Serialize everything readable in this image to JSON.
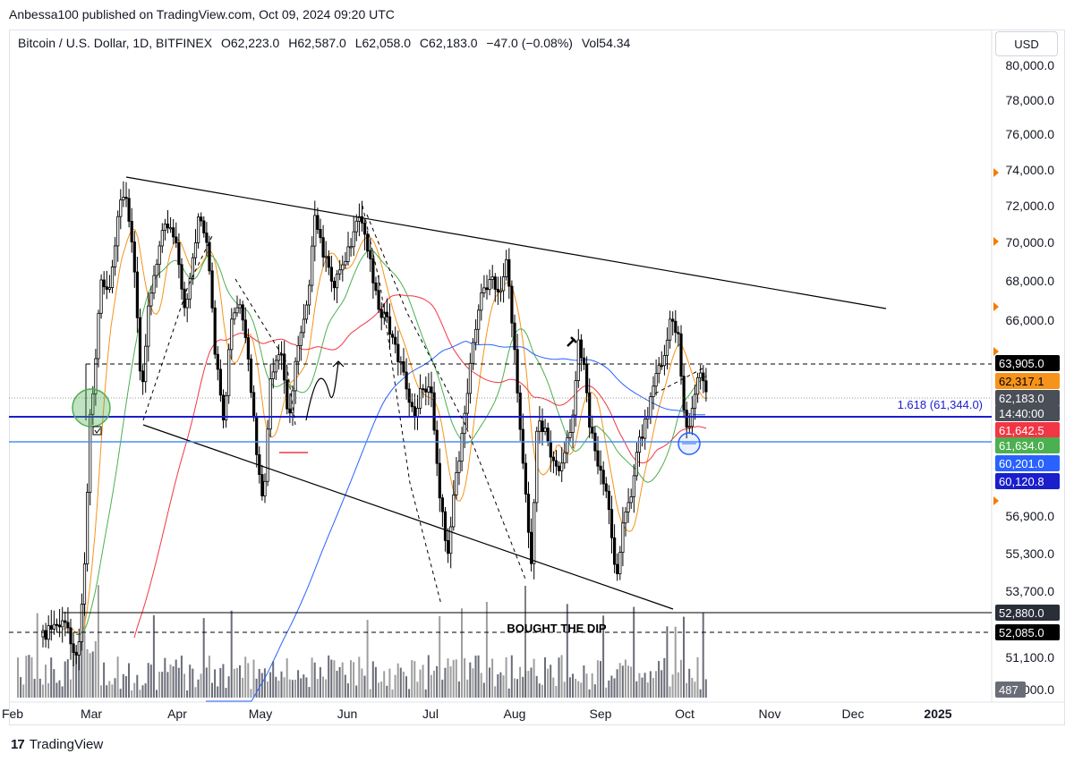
{
  "header": {
    "publish_line": "Anbessa100 published on TradingView.com, Oct 09, 2024 09:20 UTC"
  },
  "symbol": {
    "name": "Bitcoin / U.S. Dollar, 1D, BITFINEX",
    "open": "O62,223.0",
    "high": "H62,587.0",
    "low": "L62,058.0",
    "close": "C62,183.0",
    "change": "−47.0 (−0.08%)",
    "volume": "Vol54.34"
  },
  "currency_button": "USD",
  "footer": {
    "brand": "TradingView"
  },
  "chart_data": {
    "type": "candlestick",
    "y_axis": {
      "ticks": [
        "80,000.0",
        "78,000.0",
        "76,000.0",
        "74,000.0",
        "72,000.0",
        "70,000.0",
        "68,000.0",
        "66,000.0",
        "56,900.0",
        "55,300.0",
        "53,700.0",
        "51,100.0",
        "50,000.0"
      ],
      "scale": "log"
    },
    "x_axis": {
      "ticks": [
        "Feb",
        "Mar",
        "Apr",
        "May",
        "Jun",
        "Jul",
        "Aug",
        "Sep",
        "Oct",
        "Nov",
        "Dec",
        "2025"
      ]
    },
    "price_tags": [
      {
        "value": "63,905.0",
        "color": "#000000",
        "text_color": "#ffffff"
      },
      {
        "value": "62,317.1",
        "color": "#f7931a",
        "text_color": "#000000"
      },
      {
        "value": "62,183.0",
        "color": "#4a4e57",
        "text_color": "#ffffff"
      },
      {
        "value": "14:40:00",
        "color": "#4a4e57",
        "text_color": "#ffffff"
      },
      {
        "value": "61,642.5",
        "color": "#f23645",
        "text_color": "#ffffff"
      },
      {
        "value": "61,634.0",
        "color": "#4caf50",
        "text_color": "#ffffff"
      },
      {
        "value": "60,201.0",
        "color": "#2962ff",
        "text_color": "#ffffff"
      },
      {
        "value": "60,120.8",
        "color": "#1a1ecb",
        "text_color": "#ffffff"
      },
      {
        "value": "52,880.0",
        "color": "#2a2e39",
        "text_color": "#ffffff"
      },
      {
        "value": "52,085.0",
        "color": "#000000",
        "text_color": "#ffffff"
      },
      {
        "value": "487",
        "color": "#6a6d78",
        "text_color": "#ffffff"
      }
    ],
    "annotations": {
      "fib_label": "1.618 (61,344.0)",
      "text_note": "BOUGHT THE DIP"
    },
    "ohlc_last": {
      "open": 62223.0,
      "high": 62587.0,
      "low": 62058.0,
      "close": 62183.0,
      "change": -47.0,
      "change_pct": -0.08,
      "volume": 54.34
    },
    "levels": {
      "resistance": 63905.0,
      "ema_orange": 62317.1,
      "last_price": 62183.0,
      "fib_1618": 61344.0,
      "sma_red": 61642.5,
      "sma_green": 61634.0,
      "sma_blue": 60201.0,
      "support_navy": 60120.8,
      "range_low": 52880.0,
      "dip_line": 52085.0
    },
    "grid": false,
    "legend": "none"
  }
}
